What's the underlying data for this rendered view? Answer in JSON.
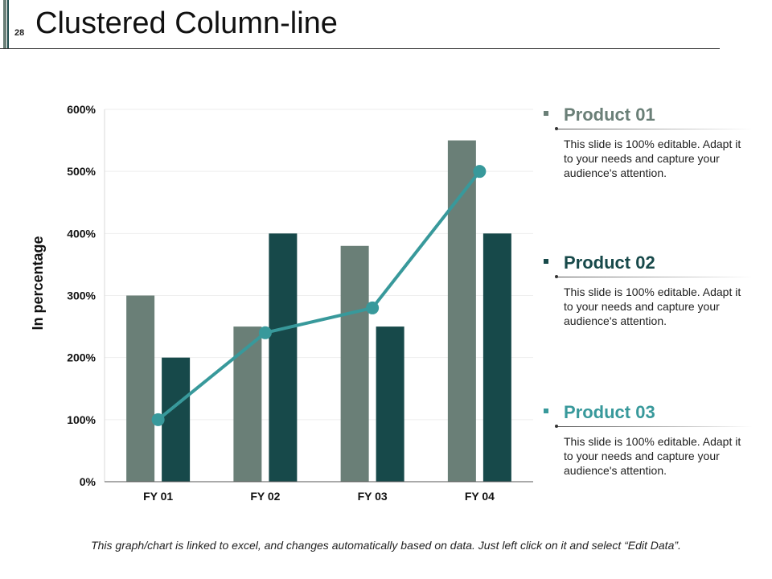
{
  "slide": {
    "number": "28",
    "title": "Clustered Column-line",
    "footer": "This graph/chart is linked to excel, and changes automatically based on data. Just left click on it and select “Edit Data”."
  },
  "colors": {
    "product01": "#6a7f77",
    "product02": "#17494a",
    "product03": "#38999b"
  },
  "legend": [
    {
      "title": "Product 01",
      "description": "This slide is 100% editable. Adapt it to your needs and capture your audience's attention.",
      "color": "#6a7f77"
    },
    {
      "title": "Product 02",
      "description": "This slide is 100% editable. Adapt it to your needs and capture your audience's attention.",
      "color": "#17494a"
    },
    {
      "title": "Product 03",
      "description": "This slide is 100% editable. Adapt it to your needs and capture your audience's attention.",
      "color": "#38999b"
    }
  ],
  "chart_data": {
    "type": "bar",
    "title": "Clustered Column-line",
    "xlabel": "",
    "ylabel": "In percentage",
    "ylim": [
      0,
      600
    ],
    "yticks": [
      0,
      100,
      200,
      300,
      400,
      500,
      600
    ],
    "ytick_labels": [
      "0%",
      "100%",
      "200%",
      "300%",
      "400%",
      "500%",
      "600%"
    ],
    "categories": [
      "FY 01",
      "FY 02",
      "FY 03",
      "FY 04"
    ],
    "grid": true,
    "legend_position": "right",
    "series": [
      {
        "name": "Product 01",
        "kind": "bar",
        "values": [
          300,
          250,
          380,
          550
        ]
      },
      {
        "name": "Product 02",
        "kind": "bar",
        "values": [
          200,
          400,
          250,
          400
        ]
      },
      {
        "name": "Product 03",
        "kind": "line",
        "values": [
          100,
          240,
          280,
          500
        ]
      }
    ]
  }
}
